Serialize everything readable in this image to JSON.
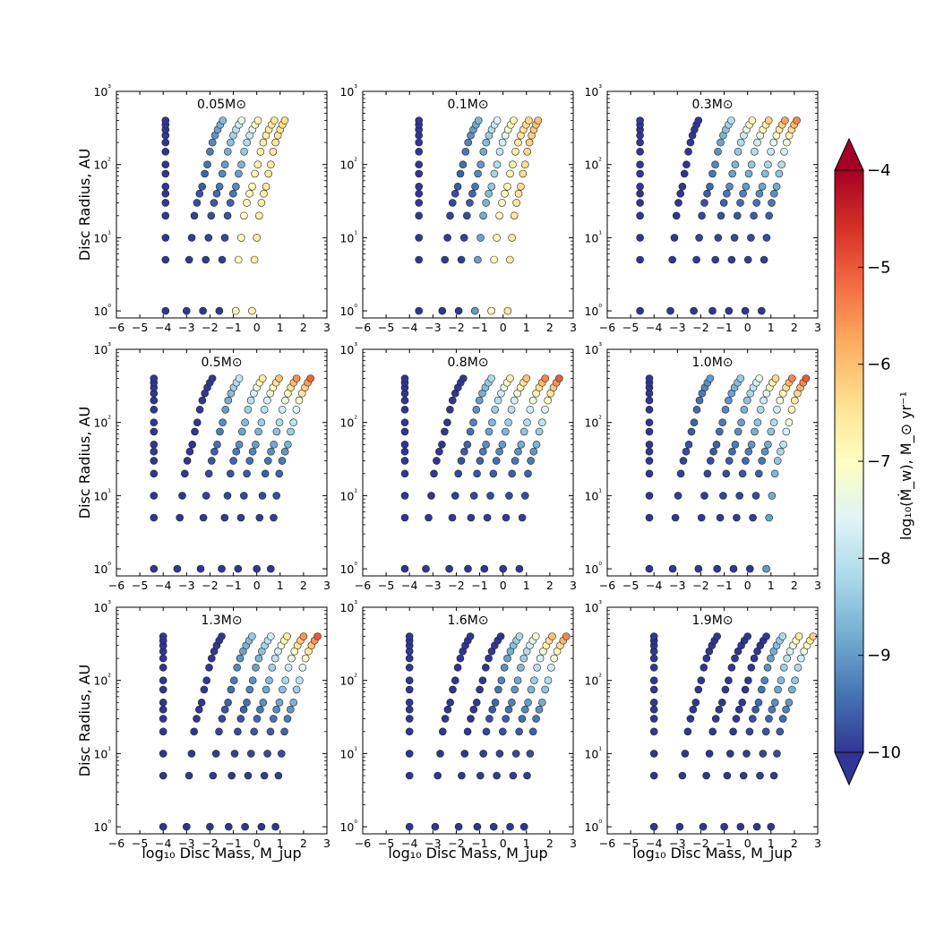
{
  "figure": {
    "xlabel": "log₁₀ Disc Mass, M_jup",
    "ylabel": "Disc Radius, AU",
    "colorbar_label": "log₁₀(Ṁ_w), M_⊙ yr⁻¹"
  },
  "chart_data": {
    "type": "scatter",
    "layout": "3x3 grid of scatter panels with shared colorbar",
    "xlabel": "log₁₀ Disc Mass, M_jup",
    "ylabel": "Disc Radius, AU",
    "x_ticks": [
      "−6",
      "−5",
      "−4",
      "−3",
      "−2",
      "−1",
      "0",
      "1",
      "2",
      "3"
    ],
    "y_ticks": [
      "10⁰",
      "10¹",
      "10²",
      "10³"
    ],
    "xlim": [
      -6,
      3
    ],
    "ylim": [
      0.8,
      1000
    ],
    "y_scale": "log",
    "color_scale": {
      "label": "log₁₀(Ṁ_w), M_⊙ yr⁻¹",
      "range": [
        -10,
        -4
      ],
      "ticks": [
        "−10",
        "−9",
        "−8",
        "−7",
        "−6",
        "−5",
        "−4"
      ],
      "colormap": "RdYlBu_r",
      "extend": "both"
    },
    "radii": [
      1,
      5,
      10,
      20,
      30,
      40,
      50,
      75,
      100,
      150,
      200,
      250,
      300,
      350,
      400
    ],
    "panels": [
      {
        "title": "0.05M⊙",
        "families": [
          {
            "min": -3.9,
            "max": -3.9,
            "c0": -10,
            "c1": -10
          },
          {
            "min": -3.0,
            "max": -1.45,
            "c0": -10,
            "c1": -8.6
          },
          {
            "min": -2.3,
            "max": -0.65,
            "c0": -10,
            "c1": -7.5
          },
          {
            "min": -1.6,
            "max": 0.05,
            "c0": -10,
            "c1": -6.8
          },
          {
            "min": -0.9,
            "max": 0.75,
            "c0": -7.0,
            "c1": -6.5
          },
          {
            "min": -0.2,
            "max": 1.2,
            "c0": -6.7,
            "c1": -6.4
          }
        ]
      },
      {
        "title": "0.1M⊙",
        "families": [
          {
            "min": -3.6,
            "max": -3.6,
            "c0": -10,
            "c1": -10
          },
          {
            "min": -2.6,
            "max": -1.05,
            "c0": -10,
            "c1": -8.7
          },
          {
            "min": -1.9,
            "max": -0.25,
            "c0": -10,
            "c1": -7.6
          },
          {
            "min": -1.2,
            "max": 0.45,
            "c0": -9.0,
            "c1": -6.8
          },
          {
            "min": -0.5,
            "max": 1.1,
            "c0": -7.0,
            "c1": -6.3
          },
          {
            "min": 0.2,
            "max": 1.5,
            "c0": -6.6,
            "c1": -6.0
          }
        ]
      },
      {
        "title": "0.3M⊙",
        "families": [
          {
            "min": -4.6,
            "max": -4.6,
            "c0": -10,
            "c1": -10
          },
          {
            "min": -3.3,
            "max": -2.1,
            "c0": -10,
            "c1": -10
          },
          {
            "min": -2.3,
            "max": -0.7,
            "c0": -10,
            "c1": -8.1
          },
          {
            "min": -1.5,
            "max": 0.2,
            "c0": -10,
            "c1": -6.8
          },
          {
            "min": -0.8,
            "max": 0.9,
            "c0": -10,
            "c1": -6.2
          },
          {
            "min": -0.1,
            "max": 1.6,
            "c0": -10,
            "c1": -5.7
          },
          {
            "min": 0.6,
            "max": 2.1,
            "c0": -10,
            "c1": -5.4
          }
        ]
      },
      {
        "title": "0.5M⊙",
        "families": [
          {
            "min": -4.4,
            "max": -4.4,
            "c0": -10,
            "c1": -10
          },
          {
            "min": -3.4,
            "max": -1.9,
            "c0": -10,
            "c1": -10
          },
          {
            "min": -2.4,
            "max": -0.75,
            "c0": -10,
            "c1": -7.9
          },
          {
            "min": -1.5,
            "max": 0.25,
            "c0": -10,
            "c1": -6.6
          },
          {
            "min": -0.8,
            "max": 0.95,
            "c0": -10,
            "c1": -6.0
          },
          {
            "min": 0.0,
            "max": 1.7,
            "c0": -10,
            "c1": -5.5
          },
          {
            "min": 0.6,
            "max": 2.3,
            "c0": -10,
            "c1": -5.1
          }
        ]
      },
      {
        "title": "0.8M⊙",
        "families": [
          {
            "min": -4.2,
            "max": -4.2,
            "c0": -10,
            "c1": -10
          },
          {
            "min": -3.3,
            "max": -1.7,
            "c0": -10,
            "c1": -10
          },
          {
            "min": -2.3,
            "max": -0.5,
            "c0": -10,
            "c1": -8.2
          },
          {
            "min": -1.5,
            "max": 0.3,
            "c0": -10,
            "c1": -6.7
          },
          {
            "min": -0.8,
            "max": 1.0,
            "c0": -10,
            "c1": -6.0
          },
          {
            "min": 0.0,
            "max": 1.8,
            "c0": -10,
            "c1": -5.4
          },
          {
            "min": 0.7,
            "max": 2.4,
            "c0": -10,
            "c1": -5.0
          }
        ]
      },
      {
        "title": "1.0M⊙",
        "families": [
          {
            "min": -4.2,
            "max": -4.2,
            "c0": -10,
            "c1": -10
          },
          {
            "min": -3.2,
            "max": -1.6,
            "c0": -10,
            "c1": -9.0
          },
          {
            "min": -2.1,
            "max": -0.3,
            "c0": -10,
            "c1": -8.4
          },
          {
            "min": -1.3,
            "max": 0.5,
            "c0": -10,
            "c1": -7.4
          },
          {
            "min": -0.6,
            "max": 1.2,
            "c0": -10,
            "c1": -6.3
          },
          {
            "min": 0.1,
            "max": 1.9,
            "c0": -10,
            "c1": -5.4
          },
          {
            "min": 0.8,
            "max": 2.5,
            "c0": -9.0,
            "c1": -5.0
          }
        ]
      },
      {
        "title": "1.3M⊙",
        "families": [
          {
            "min": -4.0,
            "max": -4.0,
            "c0": -10,
            "c1": -10
          },
          {
            "min": -3.0,
            "max": -1.5,
            "c0": -10,
            "c1": -10
          },
          {
            "min": -2.0,
            "max": -0.2,
            "c0": -10,
            "c1": -8.4
          },
          {
            "min": -1.2,
            "max": 0.6,
            "c0": -10,
            "c1": -7.8
          },
          {
            "min": -0.5,
            "max": 1.3,
            "c0": -10,
            "c1": -6.6
          },
          {
            "min": 0.2,
            "max": 2.0,
            "c0": -10,
            "c1": -5.6
          },
          {
            "min": 0.8,
            "max": 2.6,
            "c0": -10,
            "c1": -5.0
          }
        ]
      },
      {
        "title": "1.6M⊙",
        "families": [
          {
            "min": -4.0,
            "max": -4.0,
            "c0": -10,
            "c1": -10
          },
          {
            "min": -2.9,
            "max": -1.4,
            "c0": -10,
            "c1": -10
          },
          {
            "min": -1.9,
            "max": -0.1,
            "c0": -10,
            "c1": -10
          },
          {
            "min": -1.1,
            "max": 0.7,
            "c0": -10,
            "c1": -8.2
          },
          {
            "min": -0.4,
            "max": 1.4,
            "c0": -10,
            "c1": -7.2
          },
          {
            "min": 0.3,
            "max": 2.1,
            "c0": -10,
            "c1": -6.0
          },
          {
            "min": 0.9,
            "max": 2.7,
            "c0": -10,
            "c1": -5.4
          }
        ]
      },
      {
        "title": "1.9M⊙",
        "families": [
          {
            "min": -4.0,
            "max": -4.0,
            "c0": -10,
            "c1": -10
          },
          {
            "min": -2.9,
            "max": -1.3,
            "c0": -10,
            "c1": -10
          },
          {
            "min": -1.9,
            "max": 0.0,
            "c0": -10,
            "c1": -10
          },
          {
            "min": -1.0,
            "max": 0.8,
            "c0": -10,
            "c1": -10
          },
          {
            "min": -0.3,
            "max": 1.5,
            "c0": -10,
            "c1": -8.2
          },
          {
            "min": 0.4,
            "max": 2.2,
            "c0": -10,
            "c1": -6.6
          },
          {
            "min": 1.0,
            "max": 2.8,
            "c0": -10,
            "c1": -6.2
          }
        ]
      }
    ]
  }
}
